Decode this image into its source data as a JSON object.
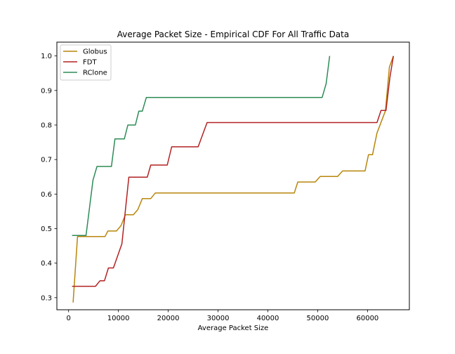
{
  "chart_data": {
    "type": "line",
    "title": "Average Packet Size - Empirical CDF For All Traffic Data",
    "xlabel": "Average Packet Size",
    "ylabel": "",
    "xlim": [
      -2350,
      68400
    ],
    "ylim": [
      0.265,
      1.04
    ],
    "x_ticks": [
      0,
      10000,
      20000,
      30000,
      40000,
      50000,
      60000
    ],
    "y_ticks": [
      0.3,
      0.4,
      0.5,
      0.6,
      0.7,
      0.8,
      0.9,
      1.0
    ],
    "x_tick_labels": [
      "0",
      "10000",
      "20000",
      "30000",
      "40000",
      "50000",
      "60000"
    ],
    "y_tick_labels": [
      "0.3",
      "0.4",
      "0.5",
      "0.6",
      "0.7",
      "0.8",
      "0.9",
      "1.0"
    ],
    "grid": false,
    "legend_position": "upper-left",
    "series": [
      {
        "name": "Globus",
        "color": "#b8860b",
        "points": [
          [
            900,
            0.286
          ],
          [
            1800,
            0.477
          ],
          [
            7300,
            0.477
          ],
          [
            7900,
            0.493
          ],
          [
            9600,
            0.493
          ],
          [
            10500,
            0.508
          ],
          [
            11400,
            0.54
          ],
          [
            13000,
            0.54
          ],
          [
            13900,
            0.555
          ],
          [
            14800,
            0.587
          ],
          [
            16500,
            0.587
          ],
          [
            17400,
            0.603
          ],
          [
            45300,
            0.603
          ],
          [
            46000,
            0.635
          ],
          [
            49500,
            0.635
          ],
          [
            50500,
            0.651
          ],
          [
            54000,
            0.651
          ],
          [
            55000,
            0.667
          ],
          [
            59500,
            0.667
          ],
          [
            60200,
            0.714
          ],
          [
            61000,
            0.714
          ],
          [
            61900,
            0.777
          ],
          [
            63600,
            0.841
          ],
          [
            64400,
            0.968
          ],
          [
            65200,
            1.0
          ]
        ]
      },
      {
        "name": "FDT",
        "color": "#b22222",
        "points": [
          [
            700,
            0.333
          ],
          [
            5400,
            0.333
          ],
          [
            6300,
            0.349
          ],
          [
            7200,
            0.349
          ],
          [
            8000,
            0.386
          ],
          [
            9000,
            0.386
          ],
          [
            10700,
            0.456
          ],
          [
            12100,
            0.649
          ],
          [
            15800,
            0.649
          ],
          [
            16500,
            0.684
          ],
          [
            19800,
            0.684
          ],
          [
            20700,
            0.737
          ],
          [
            26000,
            0.737
          ],
          [
            27800,
            0.807
          ],
          [
            61900,
            0.807
          ],
          [
            62700,
            0.842
          ],
          [
            63700,
            0.842
          ],
          [
            64500,
            0.938
          ],
          [
            65200,
            1.0
          ]
        ]
      },
      {
        "name": "RClone",
        "color": "#2e8b57",
        "points": [
          [
            700,
            0.48
          ],
          [
            3500,
            0.48
          ],
          [
            4900,
            0.64
          ],
          [
            5700,
            0.68
          ],
          [
            8600,
            0.68
          ],
          [
            9300,
            0.76
          ],
          [
            11200,
            0.76
          ],
          [
            11900,
            0.8
          ],
          [
            13400,
            0.8
          ],
          [
            14100,
            0.84
          ],
          [
            14800,
            0.84
          ],
          [
            15600,
            0.88
          ],
          [
            50900,
            0.88
          ],
          [
            51700,
            0.92
          ],
          [
            52400,
            1.0
          ]
        ]
      }
    ]
  }
}
